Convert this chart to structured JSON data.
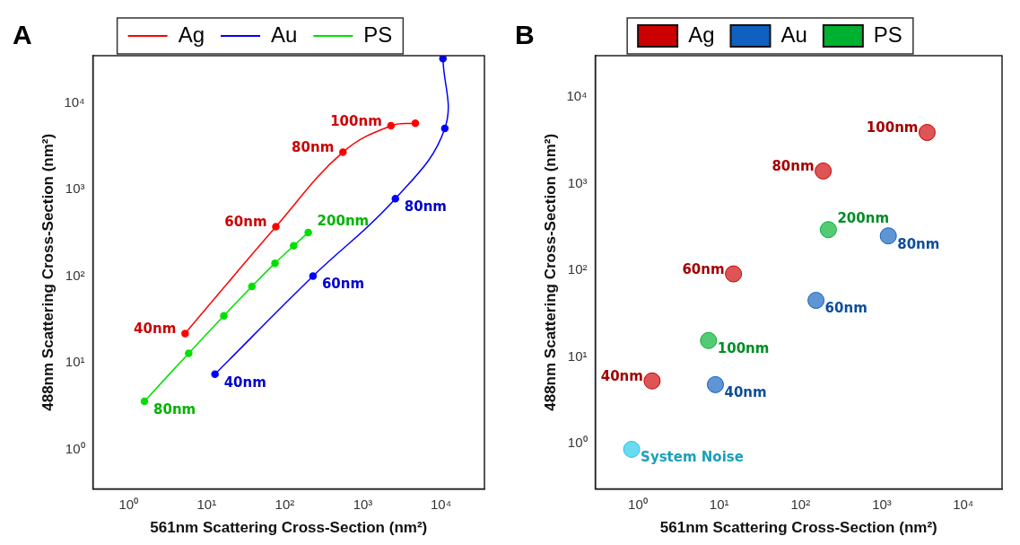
{
  "chart_data": [
    {
      "type": "line",
      "title": "A",
      "xlabel": "561nm Scattering Cross-Section (nm²)",
      "ylabel": "488nm Scattering Cross-Section (nm²)",
      "log": "xy",
      "legend": "top",
      "marker": "circle",
      "xlim": [
        0.35,
        36000
      ],
      "ylim": [
        0.35,
        35000
      ],
      "xticks": [
        {
          "value": 1,
          "label": "10⁰"
        },
        {
          "value": 10,
          "label": "10¹"
        },
        {
          "value": 100,
          "label": "10²"
        },
        {
          "value": 1000,
          "label": "10³"
        },
        {
          "value": 10000,
          "label": "10⁴"
        }
      ],
      "yticks": [
        {
          "value": 1,
          "label": "10⁰"
        },
        {
          "value": 10,
          "label": "10¹"
        },
        {
          "value": 100,
          "label": "10²"
        },
        {
          "value": 1000,
          "label": "10³"
        },
        {
          "value": 10000,
          "label": "10⁴"
        }
      ],
      "series": [
        {
          "name": "Ag",
          "color": "#ff0000",
          "x": [
            5.3,
            77,
            556,
            2290,
            4700
          ],
          "values": [
            21.8,
            372,
            2700,
            5430,
            5820
          ]
        },
        {
          "name": "Au",
          "color": "#0000ff",
          "x": [
            12.8,
            230,
            2610,
            11200,
            10600
          ],
          "values": [
            7.4,
            100,
            782,
            5070,
            32300
          ]
        },
        {
          "name": "PS",
          "color": "#00e000",
          "x": [
            1.6,
            5.9,
            16.6,
            38,
            75,
            130,
            200
          ],
          "values": [
            3.6,
            12.9,
            34.9,
            76,
            141,
            224,
            319
          ]
        }
      ],
      "annotations": [
        {
          "text": "40nm",
          "x": 5.3,
          "y": 21.8
        },
        {
          "text": "60nm",
          "x": 77,
          "y": 372
        },
        {
          "text": "80nm",
          "x": 556,
          "y": 2700
        },
        {
          "text": "100nm",
          "x": 2290,
          "y": 5430
        },
        {
          "text": "40nm",
          "x": 12.8,
          "y": 7.4
        },
        {
          "text": "60nm",
          "x": 230,
          "y": 100
        },
        {
          "text": "80nm",
          "x": 2610,
          "y": 782
        },
        {
          "text": "80nm",
          "x": 1.6,
          "y": 3.6
        },
        {
          "text": "200nm",
          "x": 200,
          "y": 319
        }
      ]
    },
    {
      "type": "scatter",
      "title": "B",
      "xlabel": "561nm Scattering Cross-Section (nm²)",
      "ylabel": "488nm Scattering Cross-Section (nm²)",
      "log": "xy",
      "legend": "top",
      "xlim": [
        0.3,
        30000
      ],
      "ylim": [
        0.3,
        30000
      ],
      "xticks": [
        {
          "value": 1,
          "label": "10⁰"
        },
        {
          "value": 10,
          "label": "10¹"
        },
        {
          "value": 100,
          "label": "10²"
        },
        {
          "value": 1000,
          "label": "10³"
        },
        {
          "value": 10000,
          "label": "10⁴"
        }
      ],
      "yticks": [
        {
          "value": 1,
          "label": "10⁰"
        },
        {
          "value": 10,
          "label": "10¹"
        },
        {
          "value": 100,
          "label": "10²"
        },
        {
          "value": 1000,
          "label": "10³"
        },
        {
          "value": 10000,
          "label": "10⁴"
        }
      ],
      "series": [
        {
          "name": "Ag",
          "color": "#cc0000",
          "x": [
            1.5,
            15,
            190,
            3600
          ],
          "values": [
            5.3,
            91,
            1400,
            3900
          ]
        },
        {
          "name": "Au",
          "color": "#1060c0",
          "x": [
            9,
            155,
            1200
          ],
          "values": [
            4.8,
            45,
            250
          ]
        },
        {
          "name": "PS",
          "color": "#00b030",
          "x": [
            7.4,
            220
          ],
          "values": [
            15.5,
            295
          ]
        },
        {
          "color": "#20c8e8",
          "x": [
            0.84
          ],
          "values": [
            0.86
          ]
        }
      ],
      "annotations": [
        {
          "text": "40nm",
          "x": 1.5,
          "y": 5.3
        },
        {
          "text": "60nm",
          "x": 15,
          "y": 91
        },
        {
          "text": "80nm",
          "x": 190,
          "y": 1400
        },
        {
          "text": "100nm",
          "x": 3600,
          "y": 3900
        },
        {
          "text": "40nm",
          "x": 9,
          "y": 4.8
        },
        {
          "text": "60nm",
          "x": 155,
          "y": 45
        },
        {
          "text": "80nm",
          "x": 1200,
          "y": 250
        },
        {
          "text": "100nm",
          "x": 7.4,
          "y": 15.5
        },
        {
          "text": "200nm",
          "x": 220,
          "y": 295
        },
        {
          "text": "System Noise",
          "x": 0.84,
          "y": 0.86
        }
      ]
    }
  ]
}
